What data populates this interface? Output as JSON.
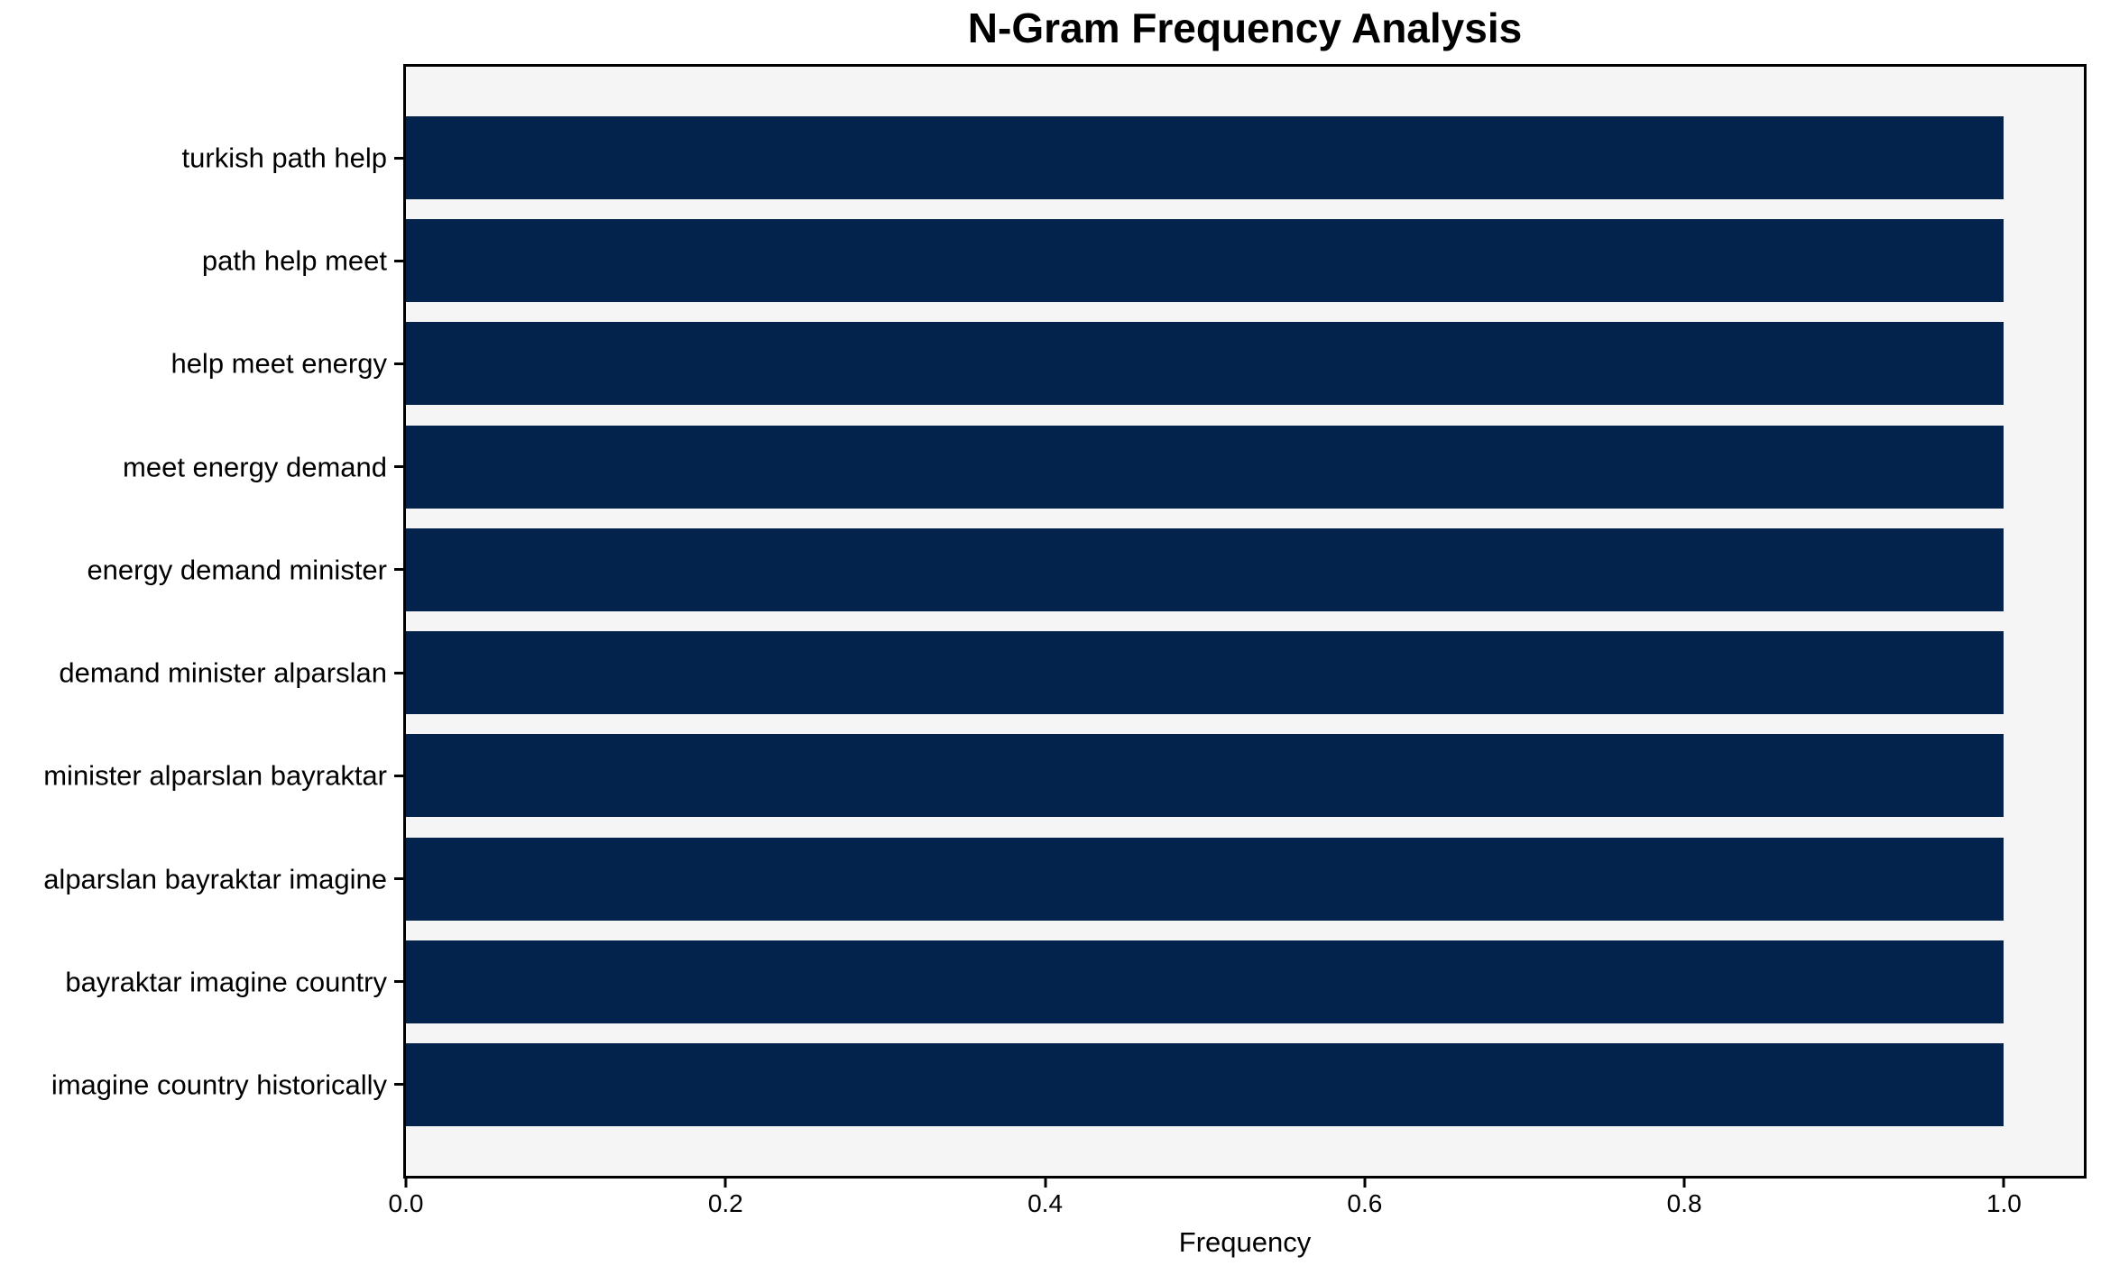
{
  "chart_data": {
    "type": "bar",
    "orientation": "horizontal",
    "title": "N-Gram Frequency Analysis",
    "xlabel": "Frequency",
    "ylabel": "",
    "categories": [
      "turkish path help",
      "path help meet",
      "help meet energy",
      "meet energy demand",
      "energy demand minister",
      "demand minister alparslan",
      "minister alparslan bayraktar",
      "alparslan bayraktar imagine",
      "bayraktar imagine country",
      "imagine country historically"
    ],
    "values": [
      1.0,
      1.0,
      1.0,
      1.0,
      1.0,
      1.0,
      1.0,
      1.0,
      1.0,
      1.0
    ],
    "xlim": [
      0,
      1.05
    ],
    "xticks": [
      0.0,
      0.2,
      0.4,
      0.6,
      0.8,
      1.0
    ],
    "xtick_labels": [
      "0.0",
      "0.2",
      "0.4",
      "0.6",
      "0.8",
      "1.0"
    ],
    "grid": false,
    "legend": false,
    "colors": {
      "bar": "#04234c",
      "plot_background": "#f5f5f5",
      "figure_background": "#ffffff",
      "axis": "#000000",
      "text": "#000000"
    }
  }
}
